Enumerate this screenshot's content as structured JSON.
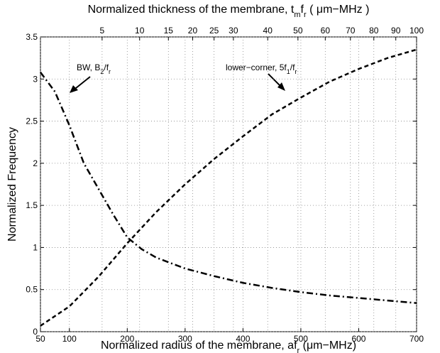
{
  "chart_data": {
    "type": "line",
    "x_label": [
      "Normalized radius of the membrane, af",
      "r",
      " (μm−MHz)"
    ],
    "x2_label": [
      "Normalized thickness of the membrane, t",
      "m",
      "f",
      "r",
      " ( μm−MHz )"
    ],
    "y_label": "Normalized Frequency",
    "xlim": [
      50,
      700
    ],
    "xticks": [
      50,
      100,
      200,
      300,
      400,
      500,
      600,
      700
    ],
    "x2lim": [
      0.51,
      100
    ],
    "x2scale": "sqrt",
    "x2ticks": [
      5,
      10,
      15,
      20,
      25,
      30,
      40,
      50,
      60,
      70,
      80,
      90,
      100
    ],
    "ylim": [
      0,
      3.5
    ],
    "yticks": [
      0,
      0.5,
      1,
      1.5,
      2,
      2.5,
      3,
      3.5
    ],
    "grid": true,
    "series": [
      {
        "name": [
          "BW, B",
          "2",
          "/f",
          "r"
        ],
        "color": "#000000",
        "dash": "dashdot",
        "x": [
          50,
          75,
          100,
          125,
          150,
          175,
          200,
          225,
          250,
          300,
          350,
          400,
          450,
          500,
          550,
          600,
          650,
          700
        ],
        "values": [
          3.08,
          2.85,
          2.45,
          2.0,
          1.7,
          1.4,
          1.12,
          0.98,
          0.88,
          0.75,
          0.66,
          0.58,
          0.52,
          0.47,
          0.43,
          0.4,
          0.37,
          0.34
        ]
      },
      {
        "name": [
          "lower−corner, 5f",
          "1",
          "/f",
          "r"
        ],
        "color": "#000000",
        "dash": "dashed",
        "x": [
          50,
          100,
          150,
          200,
          250,
          300,
          350,
          400,
          450,
          500,
          550,
          600,
          650,
          700
        ],
        "values": [
          0.07,
          0.3,
          0.65,
          1.05,
          1.42,
          1.75,
          2.05,
          2.32,
          2.58,
          2.78,
          2.97,
          3.12,
          3.25,
          3.35
        ]
      }
    ]
  }
}
